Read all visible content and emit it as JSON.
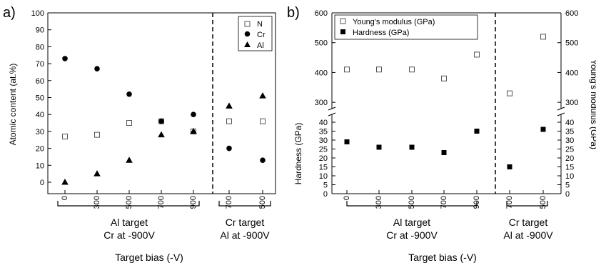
{
  "chart_data": [
    {
      "panel_label": "a)",
      "type": "scatter",
      "ylabel": "Atomic content (at.%)",
      "ylim": [
        0,
        100
      ],
      "yticks": [
        "0",
        "10",
        "20",
        "30",
        "40",
        "50",
        "60",
        "70",
        "80",
        "90",
        "100"
      ],
      "xlabel": "Target bias (-V)",
      "categories": [
        "0",
        "300",
        "500",
        "700",
        "900",
        "700",
        "500"
      ],
      "groups": [
        {
          "line1": "Al target",
          "line2": "Cr at -900V"
        },
        {
          "line1": "Cr target",
          "line2": "Al at -900V"
        }
      ],
      "legend_position": "top-right",
      "series": [
        {
          "name": "N",
          "marker": "open-square",
          "values": [
            27,
            28,
            35,
            36,
            30,
            36,
            36
          ]
        },
        {
          "name": "Cr",
          "marker": "filled-circle",
          "values": [
            73,
            67,
            52,
            36,
            40,
            20,
            13
          ]
        },
        {
          "name": "Al",
          "marker": "filled-triangle",
          "values": [
            0,
            5,
            13,
            28,
            30,
            45,
            51
          ]
        }
      ]
    },
    {
      "panel_label": "b)",
      "type": "scatter",
      "ylabel": "Hardness (GPa)",
      "ylabel_right": "Young's modulus (GPa)",
      "ylim_lower": [
        0,
        40
      ],
      "ylim_upper": [
        250,
        600
      ],
      "yticks_lower": [
        "0",
        "5",
        "10",
        "15",
        "20",
        "25",
        "30",
        "35",
        "40"
      ],
      "yticks_upper": [
        "300",
        "400",
        "500",
        "600"
      ],
      "xlabel": "Target bias (-V)",
      "categories": [
        "0",
        "300",
        "500",
        "700",
        "900",
        "700",
        "500"
      ],
      "groups": [
        {
          "line1": "Al target",
          "line2": "Cr at -900V"
        },
        {
          "line1": "Cr target",
          "line2": "Al at -900V"
        }
      ],
      "legend_position": "top-left",
      "series": [
        {
          "name": "Young's modulus (GPa)",
          "marker": "open-square",
          "values": [
            410,
            410,
            410,
            380,
            460,
            330,
            520
          ]
        },
        {
          "name": "Hardness (GPa)",
          "marker": "filled-square",
          "values": [
            29,
            26,
            26,
            23,
            35,
            15,
            36
          ]
        }
      ]
    }
  ]
}
